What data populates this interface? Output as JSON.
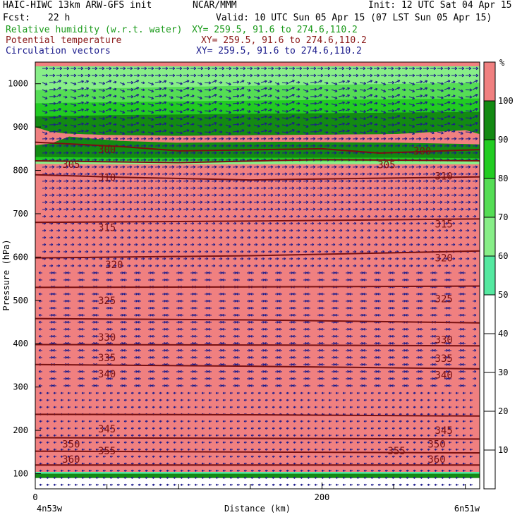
{
  "header": {
    "title": "HAIC-HIWC 13km ARW-GFS init",
    "org": "NCAR/MMM",
    "init": "Init: 12 UTC Sat 04 Apr 15",
    "fcst_label": "Fcst:",
    "fcst_value": "22 h",
    "valid": "Valid: 10 UTC Sun 05 Apr 15 (07 LST Sun 05 Apr 15)",
    "fields": [
      {
        "name": "Relative humidity (w.r.t. water)",
        "xy": "XY= 259.5, 91.6 to 274.6,110.2",
        "color": "#1a9a1a"
      },
      {
        "name": "Potential temperature",
        "xy": "XY= 259.5, 91.6 to 274.6,110.2",
        "color": "#8b1a1a"
      },
      {
        "name": "Circulation vectors",
        "xy": "XY= 259.5, 91.6 to 274.6,110.2",
        "color": "#1a1a8b"
      }
    ]
  },
  "chart_data": {
    "type": "cross-section",
    "xlabel": "Distance (km)",
    "ylabel": "Pressure (hPa)",
    "xlim": [
      0,
      310
    ],
    "ylim": [
      1050,
      65
    ],
    "x_ticks": [
      0,
      200
    ],
    "x_minor_ticks": [
      50,
      100,
      150,
      250,
      300
    ],
    "y_ticks": [
      100,
      200,
      300,
      400,
      500,
      600,
      700,
      800,
      900,
      1000
    ],
    "x_left_label": "4n53w",
    "x_right_label": "6n51w",
    "colorbar": {
      "unit": "%",
      "ticks": [
        10,
        20,
        30,
        40,
        50,
        60,
        70,
        80,
        90,
        100
      ],
      "bands": [
        {
          "from": 50,
          "to": 60,
          "color": "#55e8a0"
        },
        {
          "from": 60,
          "to": 70,
          "color": "#88ee88"
        },
        {
          "from": 70,
          "to": 80,
          "color": "#55dd55"
        },
        {
          "from": 80,
          "to": 90,
          "color": "#22cc22"
        },
        {
          "from": 90,
          "to": 100,
          "color": "#138a13"
        },
        {
          "from": 100,
          "to": 110,
          "color": "#f08080"
        }
      ]
    },
    "isentropes": [
      {
        "value": "360",
        "points": [
          [
            0,
            120
          ],
          [
            310,
            120
          ]
        ]
      },
      {
        "value": "355",
        "points": [
          [
            0,
            152
          ],
          [
            150,
            150
          ],
          [
            310,
            148
          ]
        ]
      },
      {
        "value": "350",
        "points": [
          [
            0,
            183
          ],
          [
            310,
            180
          ]
        ]
      },
      {
        "value": "345",
        "points": [
          [
            0,
            237
          ],
          [
            150,
            236
          ],
          [
            310,
            233
          ]
        ]
      },
      {
        "value": "340",
        "points": [
          [
            0,
            352
          ],
          [
            150,
            348
          ],
          [
            310,
            342
          ]
        ]
      },
      {
        "value": "335",
        "points": [
          [
            0,
            398
          ],
          [
            150,
            397
          ],
          [
            310,
            395
          ]
        ]
      },
      {
        "value": "330",
        "points": [
          [
            0,
            458
          ],
          [
            150,
            455
          ],
          [
            310,
            448
          ]
        ]
      },
      {
        "value": "325",
        "points": [
          [
            0,
            530
          ],
          [
            150,
            531
          ],
          [
            310,
            533
          ]
        ]
      },
      {
        "value": "320",
        "points": [
          [
            0,
            598
          ],
          [
            150,
            603
          ],
          [
            310,
            614
          ]
        ]
      },
      {
        "value": "315",
        "points": [
          [
            0,
            680
          ],
          [
            150,
            683
          ],
          [
            310,
            688
          ]
        ]
      },
      {
        "value": "310",
        "points": [
          [
            0,
            790
          ],
          [
            60,
            784
          ],
          [
            150,
            778
          ],
          [
            310,
            785
          ]
        ]
      },
      {
        "value": "305",
        "points": [
          [
            0,
            822
          ],
          [
            100,
            818
          ],
          [
            200,
            825
          ],
          [
            310,
            822
          ]
        ]
      },
      {
        "value": "300",
        "points": [
          [
            0,
            865
          ],
          [
            60,
            855
          ],
          [
            100,
            845
          ],
          [
            200,
            850
          ],
          [
            240,
            840
          ],
          [
            310,
            848
          ]
        ]
      }
    ],
    "labels": [
      {
        "value": "360",
        "x": 25,
        "p": 133
      },
      {
        "value": "360",
        "x": 280,
        "p": 133
      },
      {
        "value": "355",
        "x": 50,
        "p": 153
      },
      {
        "value": "355",
        "x": 252,
        "p": 153
      },
      {
        "value": "350",
        "x": 25,
        "p": 168
      },
      {
        "value": "350",
        "x": 280,
        "p": 168
      },
      {
        "value": "345",
        "x": 50,
        "p": 203
      },
      {
        "value": "345",
        "x": 285,
        "p": 200
      },
      {
        "value": "340",
        "x": 50,
        "p": 330
      },
      {
        "value": "340",
        "x": 285,
        "p": 328
      },
      {
        "value": "335",
        "x": 50,
        "p": 368
      },
      {
        "value": "335",
        "x": 285,
        "p": 366
      },
      {
        "value": "330",
        "x": 50,
        "p": 415
      },
      {
        "value": "330",
        "x": 285,
        "p": 409
      },
      {
        "value": "325",
        "x": 50,
        "p": 500
      },
      {
        "value": "325",
        "x": 285,
        "p": 504
      },
      {
        "value": "320",
        "x": 55,
        "p": 583
      },
      {
        "value": "320",
        "x": 285,
        "p": 598
      },
      {
        "value": "315",
        "x": 50,
        "p": 668
      },
      {
        "value": "315",
        "x": 285,
        "p": 676
      },
      {
        "value": "310",
        "x": 50,
        "p": 784
      },
      {
        "value": "310",
        "x": 285,
        "p": 787
      },
      {
        "value": "305",
        "x": 25,
        "p": 814
      },
      {
        "value": "305",
        "x": 245,
        "p": 813
      },
      {
        "value": "300",
        "x": 50,
        "p": 848
      },
      {
        "value": "300",
        "x": 270,
        "p": 845
      }
    ]
  }
}
